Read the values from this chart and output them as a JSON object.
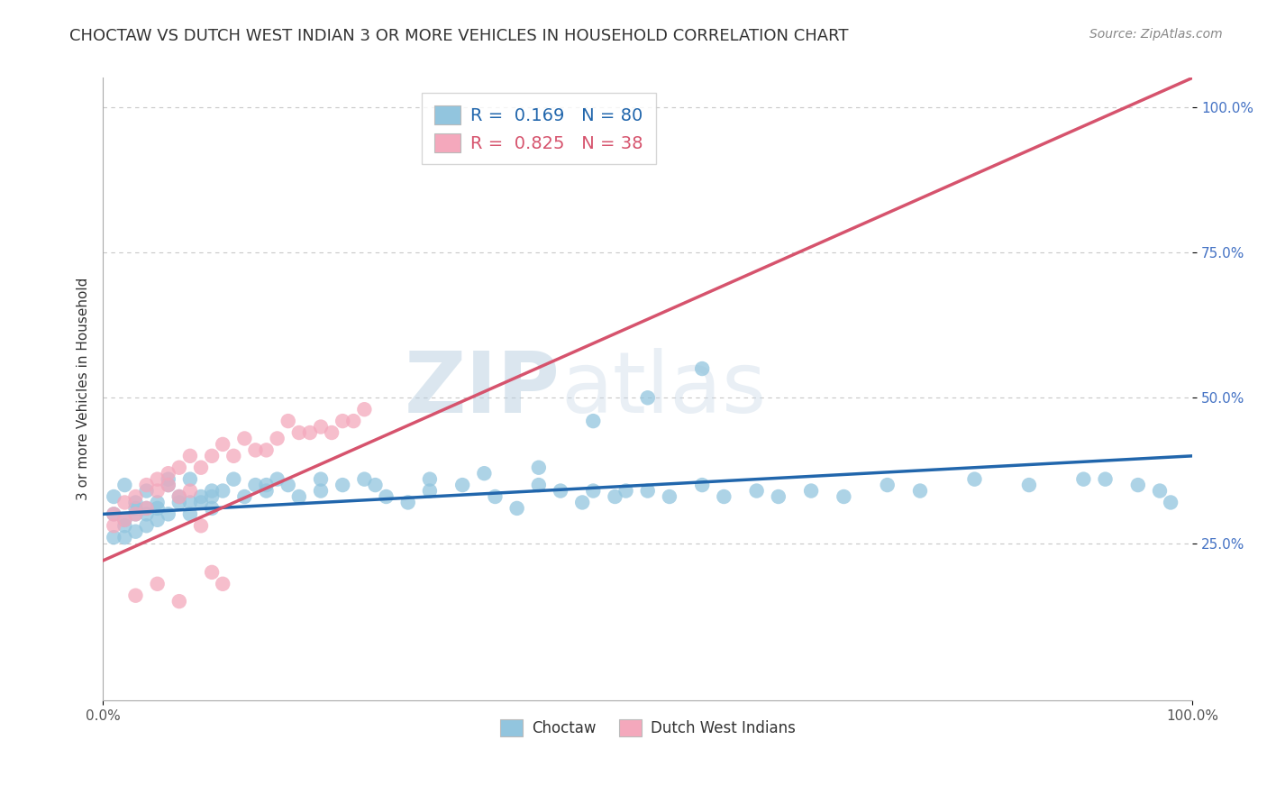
{
  "title": "CHOCTAW VS DUTCH WEST INDIAN 3 OR MORE VEHICLES IN HOUSEHOLD CORRELATION CHART",
  "source_text": "Source: ZipAtlas.com",
  "ylabel": "3 or more Vehicles in Household",
  "watermark_left": "ZIP",
  "watermark_right": "atlas",
  "xlim": [
    0,
    100
  ],
  "ylim": [
    -2,
    105
  ],
  "ytick_positions": [
    25,
    50,
    75,
    100
  ],
  "ytick_labels": [
    "25.0%",
    "50.0%",
    "75.0%",
    "100.0%"
  ],
  "blue_R": 0.169,
  "blue_N": 80,
  "pink_R": 0.825,
  "pink_N": 38,
  "blue_color": "#92c5de",
  "pink_color": "#f4a8bc",
  "blue_line_color": "#2166ac",
  "pink_line_color": "#d6536d",
  "legend_label_blue": "Choctaw",
  "legend_label_pink": "Dutch West Indians",
  "title_fontsize": 13,
  "axis_label_fontsize": 11,
  "tick_fontsize": 11,
  "legend_fontsize": 14,
  "background_color": "#ffffff",
  "grid_color": "#c8c8c8",
  "blue_scatter_x": [
    1,
    2,
    3,
    4,
    5,
    1,
    2,
    3,
    4,
    5,
    6,
    7,
    8,
    9,
    10,
    2,
    3,
    4,
    5,
    6,
    7,
    8,
    9,
    10,
    11,
    12,
    13,
    14,
    15,
    16,
    17,
    18,
    20,
    22,
    24,
    26,
    28,
    30,
    33,
    36,
    38,
    40,
    42,
    44,
    45,
    47,
    48,
    50,
    52,
    55,
    57,
    60,
    62,
    65,
    68,
    72,
    75,
    80,
    85,
    90,
    92,
    95,
    97,
    98,
    55,
    50,
    45,
    40,
    35,
    30,
    25,
    20,
    15,
    10,
    8,
    6,
    4,
    3,
    2,
    1
  ],
  "blue_scatter_y": [
    30,
    28,
    32,
    31,
    29,
    33,
    35,
    30,
    34,
    31,
    36,
    32,
    30,
    33,
    34,
    29,
    31,
    30,
    32,
    35,
    33,
    36,
    32,
    31,
    34,
    36,
    33,
    35,
    34,
    36,
    35,
    33,
    34,
    35,
    36,
    33,
    32,
    34,
    35,
    33,
    31,
    35,
    34,
    32,
    34,
    33,
    34,
    34,
    33,
    35,
    33,
    34,
    33,
    34,
    33,
    35,
    34,
    36,
    35,
    36,
    36,
    35,
    34,
    32,
    55,
    50,
    46,
    38,
    37,
    36,
    35,
    36,
    35,
    33,
    32,
    30,
    28,
    27,
    26,
    26
  ],
  "pink_scatter_x": [
    1,
    2,
    3,
    4,
    5,
    6,
    7,
    8,
    9,
    10,
    11,
    12,
    13,
    14,
    15,
    16,
    17,
    18,
    19,
    20,
    21,
    22,
    23,
    24,
    1,
    2,
    3,
    4,
    5,
    6,
    7,
    8,
    9,
    10,
    11,
    3,
    5,
    7
  ],
  "pink_scatter_y": [
    30,
    32,
    33,
    35,
    36,
    37,
    38,
    40,
    38,
    40,
    42,
    40,
    43,
    41,
    41,
    43,
    46,
    44,
    44,
    45,
    44,
    46,
    46,
    48,
    28,
    29,
    30,
    31,
    34,
    35,
    33,
    34,
    28,
    20,
    18,
    16,
    18,
    15
  ],
  "blue_trendline_x": [
    0,
    100
  ],
  "blue_trendline_y": [
    30,
    40
  ],
  "pink_trendline_x": [
    0,
    100
  ],
  "pink_trendline_y": [
    22,
    105
  ]
}
